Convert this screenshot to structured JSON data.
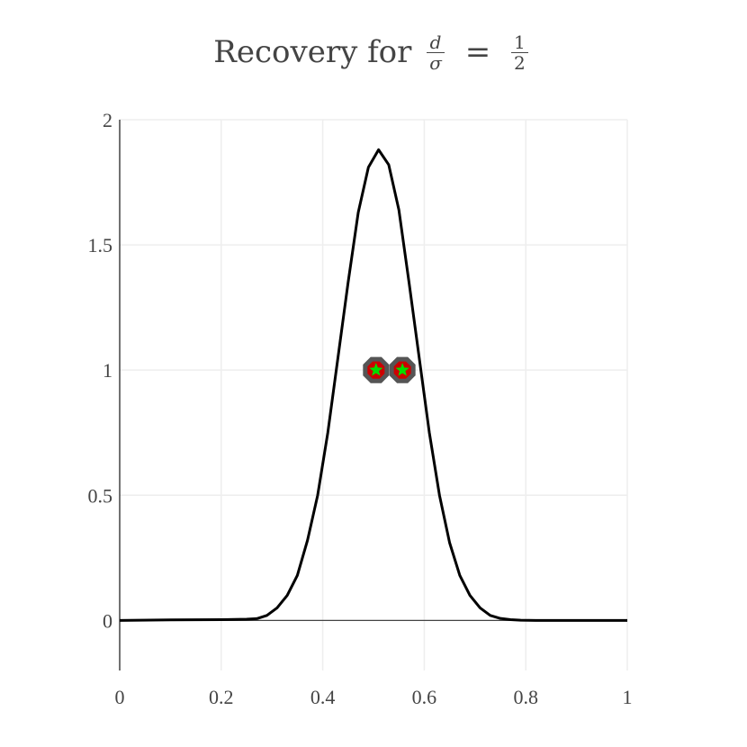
{
  "title": {
    "prefix": "Recovery for",
    "fraction_numerator": "d",
    "fraction_denominator": "σ",
    "equals": "=",
    "rhs_numerator": "1",
    "rhs_denominator": "2"
  },
  "chart_data": {
    "type": "line",
    "title": "Recovery for d/σ = 1/2",
    "xlabel": "",
    "ylabel": "",
    "xlim": [
      0,
      1
    ],
    "ylim": [
      -0.2,
      2
    ],
    "xticks": [
      0,
      0.2,
      0.4,
      0.6,
      0.8,
      1
    ],
    "xtick_labels": [
      "0",
      "0.2",
      "0.4",
      "0.6",
      "0.8",
      "1"
    ],
    "yticks": [
      0,
      0.5,
      1,
      1.5,
      2
    ],
    "ytick_labels": [
      "0",
      "0.5",
      "1",
      "1.5",
      "2"
    ],
    "grid": true,
    "series": [
      {
        "kind": "line",
        "color": "#000000",
        "x": [
          0,
          0.1,
          0.2,
          0.25,
          0.27,
          0.29,
          0.31,
          0.33,
          0.35,
          0.37,
          0.39,
          0.41,
          0.43,
          0.45,
          0.47,
          0.49,
          0.51,
          0.53,
          0.55,
          0.57,
          0.59,
          0.61,
          0.63,
          0.65,
          0.67,
          0.69,
          0.71,
          0.73,
          0.75,
          0.77,
          0.79,
          0.82,
          0.9,
          1.0
        ],
        "y": [
          0,
          0.002,
          0.003,
          0.005,
          0.007,
          0.02,
          0.05,
          0.1,
          0.18,
          0.32,
          0.5,
          0.75,
          1.05,
          1.35,
          1.63,
          1.81,
          1.88,
          1.82,
          1.64,
          1.35,
          1.05,
          0.75,
          0.5,
          0.31,
          0.18,
          0.1,
          0.05,
          0.02,
          0.008,
          0.003,
          0.001,
          0.0,
          0.0,
          0.0
        ]
      },
      {
        "kind": "scatter",
        "marker": "octagon",
        "color": "#cc0000",
        "edge_color": "#555555",
        "x": [
          0.505,
          0.557
        ],
        "y": [
          1.0,
          1.0
        ]
      },
      {
        "kind": "scatter",
        "marker": "star",
        "color": "#00dd00",
        "x": [
          0.505,
          0.557
        ],
        "y": [
          1.0,
          1.0
        ]
      }
    ]
  }
}
